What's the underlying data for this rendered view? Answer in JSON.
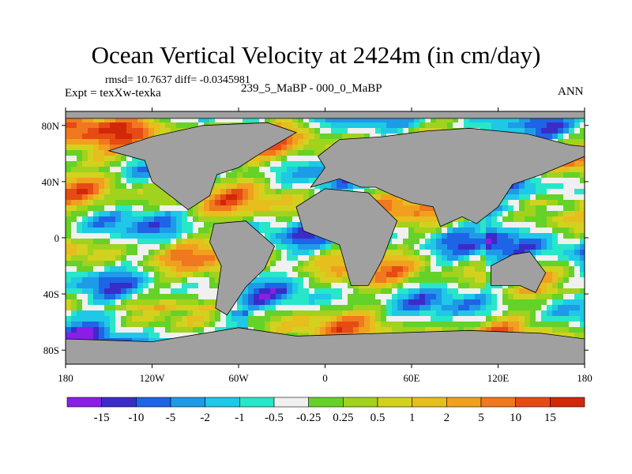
{
  "title": "Ocean Vertical Velocity at 2424m (in cm/day)",
  "stats_line": "rmsd= 10.7637 diff= -0.0345981",
  "experiment_line": "Expt = texXw-texka",
  "subtitle": "239_5_MaBP - 000_0_MaBP",
  "season": "ANN",
  "map": {
    "projection": "cylindrical-equidistant",
    "lon_range": [
      -180,
      180
    ],
    "lat_range": [
      -90,
      90
    ],
    "land_color": "#a0a0a0",
    "lat_ticks": [
      {
        "value": 80,
        "label": "80N"
      },
      {
        "value": 40,
        "label": "40N"
      },
      {
        "value": 0,
        "label": "0"
      },
      {
        "value": -40,
        "label": "40S"
      },
      {
        "value": -80,
        "label": "80S"
      }
    ],
    "lon_ticks": [
      {
        "value": -180,
        "label": "180"
      },
      {
        "value": -120,
        "label": "120W"
      },
      {
        "value": -60,
        "label": "60W"
      },
      {
        "value": 0,
        "label": "0"
      },
      {
        "value": 60,
        "label": "60E"
      },
      {
        "value": 120,
        "label": "120E"
      },
      {
        "value": 180,
        "label": "180"
      }
    ]
  },
  "colorbar": {
    "colors": [
      "#8a1ee6",
      "#3b2cc8",
      "#1e64e6",
      "#1e9be6",
      "#1ec8e6",
      "#28e6c8",
      "#f0f0f0",
      "#64d228",
      "#a0d21e",
      "#d2d21e",
      "#e6be1e",
      "#f0a01e",
      "#f0781e",
      "#e64b14",
      "#d2280a"
    ],
    "labels": [
      "-15",
      "-10",
      "-5",
      "-2",
      "-1",
      "-0.5",
      "-0.25",
      "0.25",
      "0.5",
      "1",
      "2",
      "5",
      "10",
      "15"
    ]
  }
}
